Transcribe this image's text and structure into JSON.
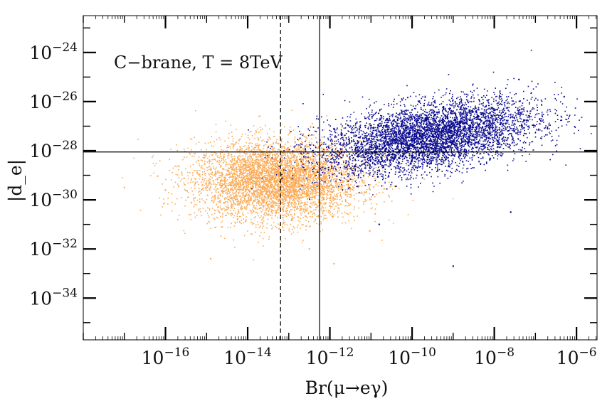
{
  "chart_data": {
    "type": "scatter",
    "title": "",
    "annotation": "C−brane, T = 8TeV",
    "xlabel": "Br(μ→eγ)",
    "ylabel": "|d_e|",
    "xscale": "log10",
    "yscale": "log10",
    "xlim_exp": [
      -18,
      -5.5
    ],
    "ylim_exp": [
      -35.7,
      -22.5
    ],
    "x_ticks": [
      {
        "base": "10",
        "exp": "−16",
        "value_exp": -16
      },
      {
        "base": "10",
        "exp": "−14",
        "value_exp": -14
      },
      {
        "base": "10",
        "exp": "−12",
        "value_exp": -12
      },
      {
        "base": "10",
        "exp": "−10",
        "value_exp": -10
      },
      {
        "base": "10",
        "exp": "−8",
        "value_exp": -8
      },
      {
        "base": "10",
        "exp": "−6",
        "value_exp": -6
      }
    ],
    "y_ticks": [
      {
        "base": "10",
        "exp": "−24",
        "value_exp": -24
      },
      {
        "base": "10",
        "exp": "−26",
        "value_exp": -26
      },
      {
        "base": "10",
        "exp": "−28",
        "value_exp": -28
      },
      {
        "base": "10",
        "exp": "−30",
        "value_exp": -30
      },
      {
        "base": "10",
        "exp": "−32",
        "value_exp": -32
      },
      {
        "base": "10",
        "exp": "−34",
        "value_exp": -34
      }
    ],
    "reference_lines": [
      {
        "orientation": "vertical",
        "value_exp": -12.25,
        "style": "solid"
      },
      {
        "orientation": "vertical",
        "value_exp": -13.2,
        "style": "dashed"
      },
      {
        "orientation": "horizontal",
        "value_exp": -28.05,
        "style": "solid"
      }
    ],
    "series": [
      {
        "name": "orange",
        "color": "#FBAA55",
        "n_points": 5200,
        "center_exp": [
          -13.3,
          -29.2
        ],
        "spread_exp": [
          1.0,
          0.8
        ],
        "extreme_points_exp": [
          [
            -16.0,
            -29.6
          ],
          [
            -17.0,
            -29.5
          ],
          [
            -14.9,
            -32.4
          ],
          [
            -11.9,
            -32.6
          ],
          [
            -12.5,
            -32.0
          ],
          [
            -15.2,
            -28.4
          ]
        ]
      },
      {
        "name": "blue",
        "color": "#0A0A8F",
        "n_points": 9500,
        "center_exp": [
          -9.6,
          -27.4
        ],
        "spread_exp": [
          1.3,
          0.75
        ],
        "correlation": 0.45,
        "extreme_points_exp": [
          [
            -9.0,
            -32.7
          ],
          [
            -7.4,
            -25.1
          ],
          [
            -6.3,
            -25.8
          ],
          [
            -10.8,
            -31.0
          ],
          [
            -11.9,
            -27.1
          ],
          [
            -7.6,
            -30.5
          ]
        ]
      }
    ]
  }
}
